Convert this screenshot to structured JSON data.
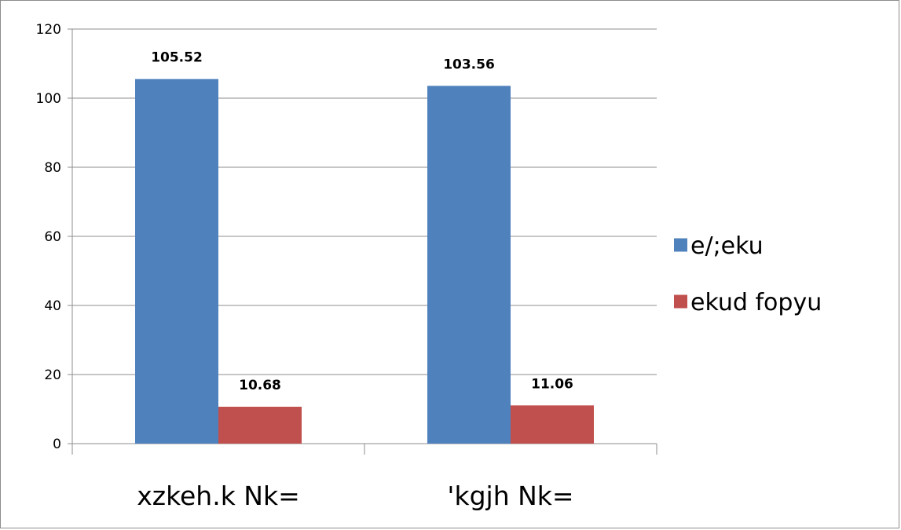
{
  "chart_data": {
    "type": "bar",
    "title": "",
    "xlabel": "",
    "ylabel": "",
    "categories": [
      "xzkeh.k Nk=",
      "'kgjh Nk="
    ],
    "series": [
      {
        "name": "e/;eku",
        "color": "#4f81bd",
        "values": [
          105.52,
          103.56
        ],
        "labels": [
          "105.52",
          "103.56"
        ]
      },
      {
        "name": "ekud fopyu",
        "color": "#c0504d",
        "values": [
          10.68,
          11.06
        ],
        "labels": [
          "10.68",
          "11.06"
        ]
      }
    ],
    "ylim": [
      0,
      120
    ],
    "yticks": [
      0,
      20,
      40,
      60,
      80,
      100,
      120
    ],
    "grid": true,
    "legend_position": "right"
  }
}
